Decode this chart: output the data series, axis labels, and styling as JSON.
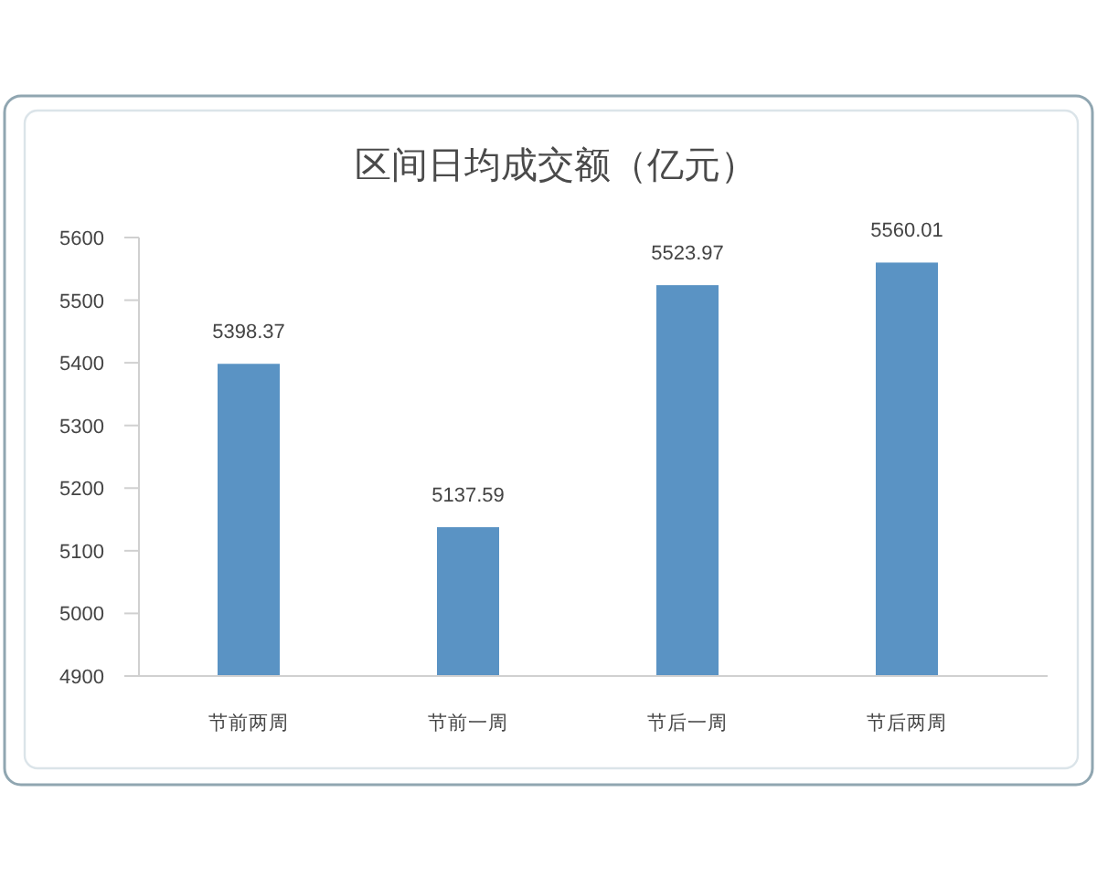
{
  "chart_data": {
    "type": "bar",
    "title": "区间日均成交额（亿元）",
    "categories": [
      "节前两周",
      "节前一周",
      "节后一周",
      "节后两周"
    ],
    "values": [
      5398.37,
      5137.59,
      5523.97,
      5560.01
    ],
    "color": "#5a93c4",
    "ylim": [
      4900,
      5600
    ],
    "yticks": [
      4900,
      5000,
      5100,
      5200,
      5300,
      5400,
      5500,
      5600
    ],
    "data_labels": true
  }
}
